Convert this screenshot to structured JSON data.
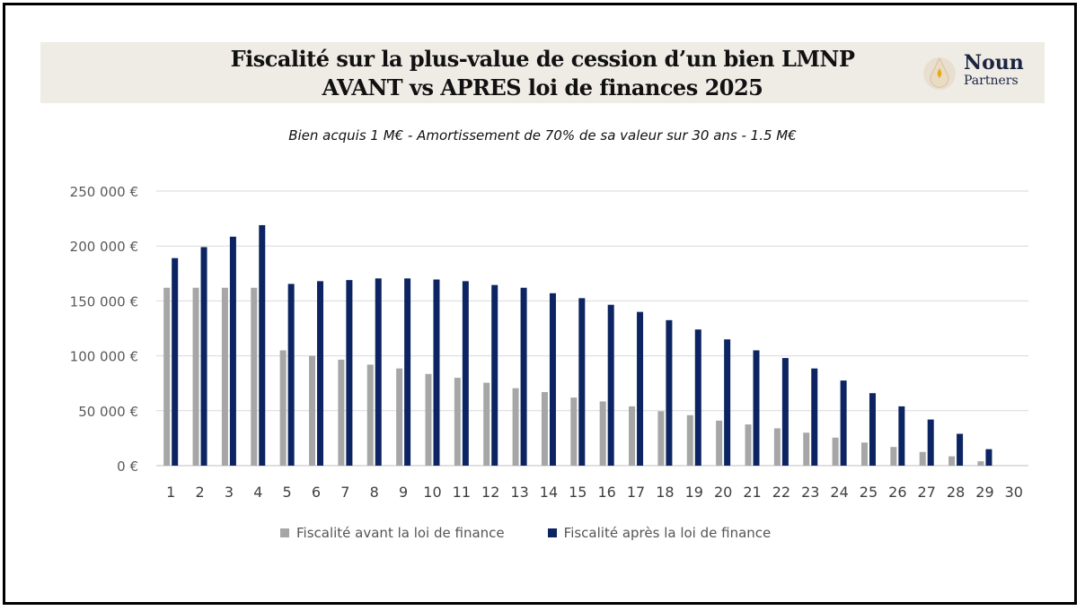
{
  "header": {
    "title_line1": "Fiscalité sur la plus-value de cession d’un bien LMNP",
    "title_line2": "AVANT vs APRES  loi de finances 2025",
    "logo_word1": "Noun",
    "logo_word2": "Partners"
  },
  "colors": {
    "before": "#a6a6a6",
    "after": "#0c2461",
    "banner": "#efebe5",
    "grid": "#d9d9d9"
  },
  "chart_data": {
    "type": "bar",
    "subtitle": "Bien acquis 1 M€ - Amortissement de 70% de sa valeur sur 30 ans - 1.5 M€",
    "categories": [
      "1",
      "2",
      "3",
      "4",
      "5",
      "6",
      "7",
      "8",
      "9",
      "10",
      "11",
      "12",
      "13",
      "14",
      "15",
      "16",
      "17",
      "18",
      "19",
      "20",
      "21",
      "22",
      "23",
      "24",
      "25",
      "26",
      "27",
      "28",
      "29",
      "30"
    ],
    "y_ticks": [
      "0 €",
      "50 000 €",
      "100 000 €",
      "150 000 €",
      "200 000 €",
      "250 000 €"
    ],
    "ylim": [
      0,
      250000
    ],
    "grid": true,
    "legend_position": "bottom",
    "series": [
      {
        "name": "Fiscalité avant la loi de finance",
        "values": [
          162000,
          162000,
          162000,
          162000,
          105000,
          100000,
          96500,
          92000,
          88500,
          83500,
          80000,
          75500,
          70500,
          67000,
          62000,
          58500,
          54000,
          49500,
          46000,
          41000,
          37500,
          34000,
          30000,
          25500,
          21000,
          17000,
          12500,
          8500,
          4000,
          0
        ]
      },
      {
        "name": "Fiscalité après la loi de finance",
        "values": [
          189000,
          199000,
          208500,
          219000,
          165500,
          168000,
          169000,
          170500,
          170500,
          169500,
          168000,
          164500,
          162000,
          157000,
          152500,
          146500,
          140000,
          132500,
          124000,
          115000,
          105000,
          98000,
          88500,
          77500,
          66000,
          54000,
          42000,
          29000,
          15000,
          0
        ]
      }
    ]
  }
}
